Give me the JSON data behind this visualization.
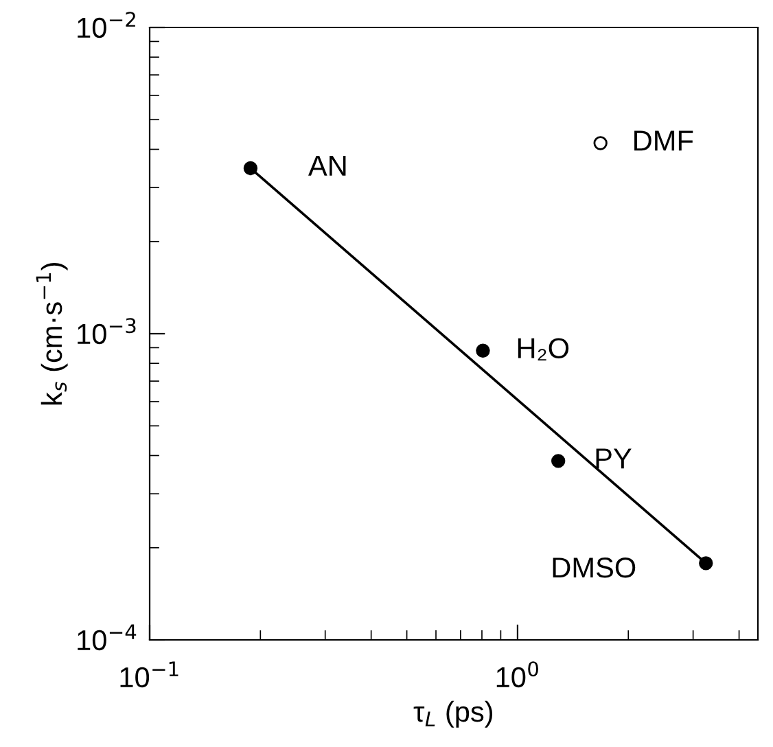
{
  "chart_data": {
    "type": "scatter",
    "xlabel": "τ$_{L}$ (ps)",
    "ylabel": "k$_{s}$ (cm·s$^{−1}$)",
    "log": "xy",
    "xlim": [
      0.1,
      4.5
    ],
    "ylim": [
      0.0001,
      0.01
    ],
    "xticks": [
      {
        "value": 0.1,
        "label": "10$^{−1}$"
      },
      {
        "value": 1,
        "label": "10$^{0}$"
      }
    ],
    "yticks": [
      {
        "value": 0.0001,
        "label": "10$^{−4}$"
      },
      {
        "value": 0.001,
        "label": "10$^{−3}$"
      },
      {
        "value": 0.01,
        "label": "10$^{−2}$"
      }
    ],
    "grid": false,
    "marker": "circle",
    "series": [
      {
        "color": "#000000",
        "x": [
          0.188,
          0.805,
          1.29,
          3.25
        ],
        "values": [
          0.00347,
          0.00088,
          0.000384,
          0.000178
        ]
      },
      {
        "type": "scatter",
        "color": "#ffffff",
        "x": [
          1.68
        ],
        "values": [
          0.00419
        ]
      },
      {
        "type": "line",
        "color": "#000000",
        "marker": "none",
        "line_style": "solid",
        "x": [
          0.188,
          3.25
        ],
        "values": [
          0.00347,
          0.000178
        ]
      }
    ],
    "annotations": [
      {
        "text": "AN",
        "x": 0.188,
        "y": 0.00347
      },
      {
        "text": "DMF",
        "x": 1.68,
        "y": 0.00419
      },
      {
        "text": "H₂O",
        "x": 0.805,
        "y": 0.00088
      },
      {
        "text": "PY",
        "x": 1.29,
        "y": 0.000384
      },
      {
        "text": "DMSO",
        "x": 3.25,
        "y": 0.000178
      }
    ]
  }
}
